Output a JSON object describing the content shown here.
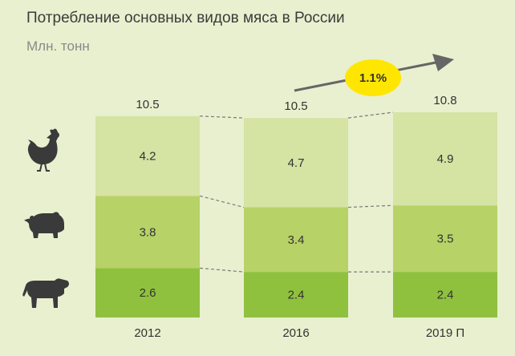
{
  "title": "Потребление основных видов мяса в России",
  "subtitle": "Млн. тонн",
  "growth_badge": "1.1%",
  "colors": {
    "poultry": "#d5e3a3",
    "pork": "#b7d267",
    "beef": "#8fc13e",
    "icon": "#3a3a3a",
    "badge": "#ffe600",
    "arrow": "#666666",
    "background": "#e9f0cf"
  },
  "icons": [
    "chicken-icon",
    "pig-icon",
    "cow-icon"
  ],
  "chart_data": {
    "type": "bar",
    "stacked": true,
    "categories": [
      "2012",
      "2016",
      "2019 П"
    ],
    "totals": [
      "10.5",
      "10.5",
      "10.8"
    ],
    "series": [
      {
        "values": [
          2.6,
          2.4,
          2.4
        ],
        "labels": [
          "2.6",
          "2.4",
          "2.4"
        ],
        "icon": "cow-icon"
      },
      {
        "values": [
          3.8,
          3.4,
          3.5
        ],
        "labels": [
          "3.8",
          "3.4",
          "3.5"
        ],
        "icon": "pig-icon"
      },
      {
        "values": [
          4.2,
          4.7,
          4.9
        ],
        "labels": [
          "4.2",
          "4.7",
          "4.9"
        ],
        "icon": "chicken-icon"
      }
    ],
    "title": "Потребление основных видов мяса в России",
    "ylabel": "Млн. тонн",
    "legend": "left"
  }
}
